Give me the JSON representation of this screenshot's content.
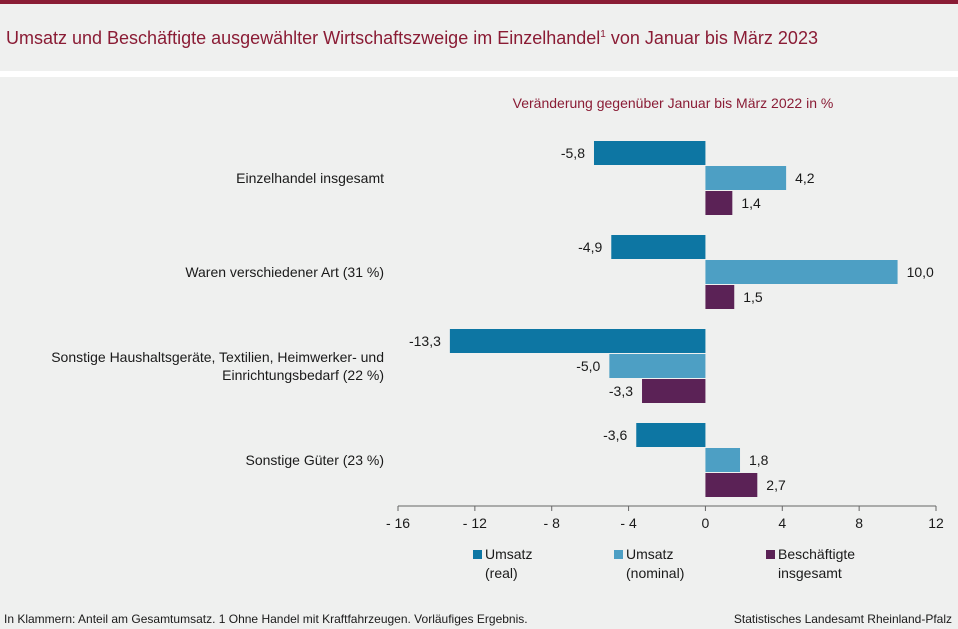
{
  "header": {
    "title": "Umsatz und Beschäftigte ausgewählter Wirtschaftszweige im Einzelhandel",
    "title_sup": "1",
    "title_tail": " von Januar bis März 2023"
  },
  "footer": {
    "note": "In Klammern: Anteil am Gesamtumsatz. 1 Ohne Handel mit Kraftfahrzeugen. Vorläufiges Ergebnis.",
    "source": "Statistisches Landesamt Rheinland-Pfalz"
  },
  "chart_data": {
    "type": "bar",
    "orientation": "horizontal",
    "title": "Veränderung gegenüber Januar bis März 2022 in %",
    "categories": [
      [
        "Einzelhandel insgesamt"
      ],
      [
        "Waren verschiedener Art (31 %)"
      ],
      [
        "Sonstige Haushaltsgeräte, Textilien, Heimwerker- und",
        "Einrichtungsbedarf (22 %)"
      ],
      [
        "Sonstige Güter (23 %)"
      ]
    ],
    "series": [
      {
        "name": [
          "Umsatz",
          "(real)"
        ],
        "color": "#0d76a3",
        "values": [
          -5.8,
          -4.9,
          -13.3,
          -3.6
        ],
        "labels": [
          "-5,8",
          "-4,9",
          "-13,3",
          "-3,6"
        ]
      },
      {
        "name": [
          "Umsatz",
          "(nominal)"
        ],
        "color": "#4d9fc4",
        "values": [
          4.2,
          10.0,
          -5.0,
          1.8
        ],
        "labels": [
          "4,2",
          "10,0",
          "-5,0",
          "1,8"
        ]
      },
      {
        "name": [
          "Beschäftigte",
          "insgesamt"
        ],
        "color": "#5b2256",
        "values": [
          1.4,
          1.5,
          -3.3,
          2.7
        ],
        "labels": [
          "1,4",
          "1,5",
          "-3,3",
          "2,7"
        ]
      }
    ],
    "xlim": [
      -16,
      12
    ],
    "ticks": [
      -16,
      -12,
      -8,
      -4,
      0,
      4,
      8,
      12
    ],
    "tick_labels": [
      "- 16",
      "- 12",
      "- 8",
      "- 4",
      "0",
      "4",
      "8",
      "12"
    ],
    "legend_position": "bottom"
  }
}
